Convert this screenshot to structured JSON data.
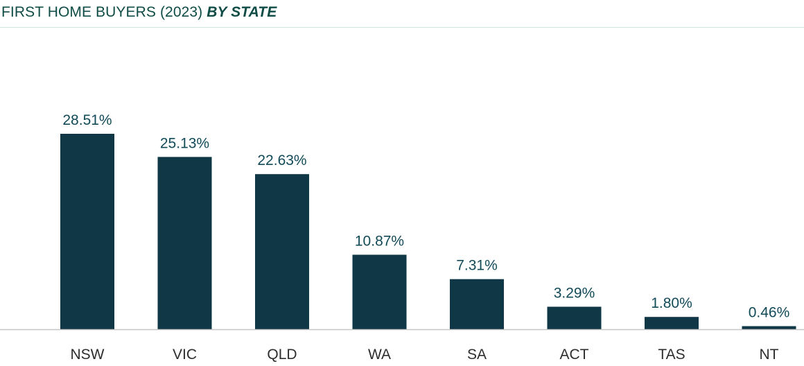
{
  "header": {
    "title_plain": "FIRST HOME BUYERS (2023) ",
    "title_emphasis": "BY STATE"
  },
  "chart_data": {
    "type": "bar",
    "categories": [
      "NSW",
      "VIC",
      "QLD",
      "WA",
      "SA",
      "ACT",
      "TAS",
      "NT"
    ],
    "values": [
      28.51,
      25.13,
      22.63,
      10.87,
      7.31,
      3.29,
      1.8,
      0.46
    ],
    "data_labels": [
      "28.51%",
      "25.13%",
      "22.63%",
      "10.87%",
      "7.31%",
      "3.29%",
      "1.80%",
      "0.46%"
    ],
    "title": "FIRST HOME BUYERS (2023) BY STATE",
    "xlabel": "",
    "ylabel": "",
    "ylim": [
      0,
      28.51
    ],
    "grid": false,
    "colors": {
      "bar": "#0f3746",
      "label": "#124a57",
      "title": "#0f4c45"
    }
  }
}
